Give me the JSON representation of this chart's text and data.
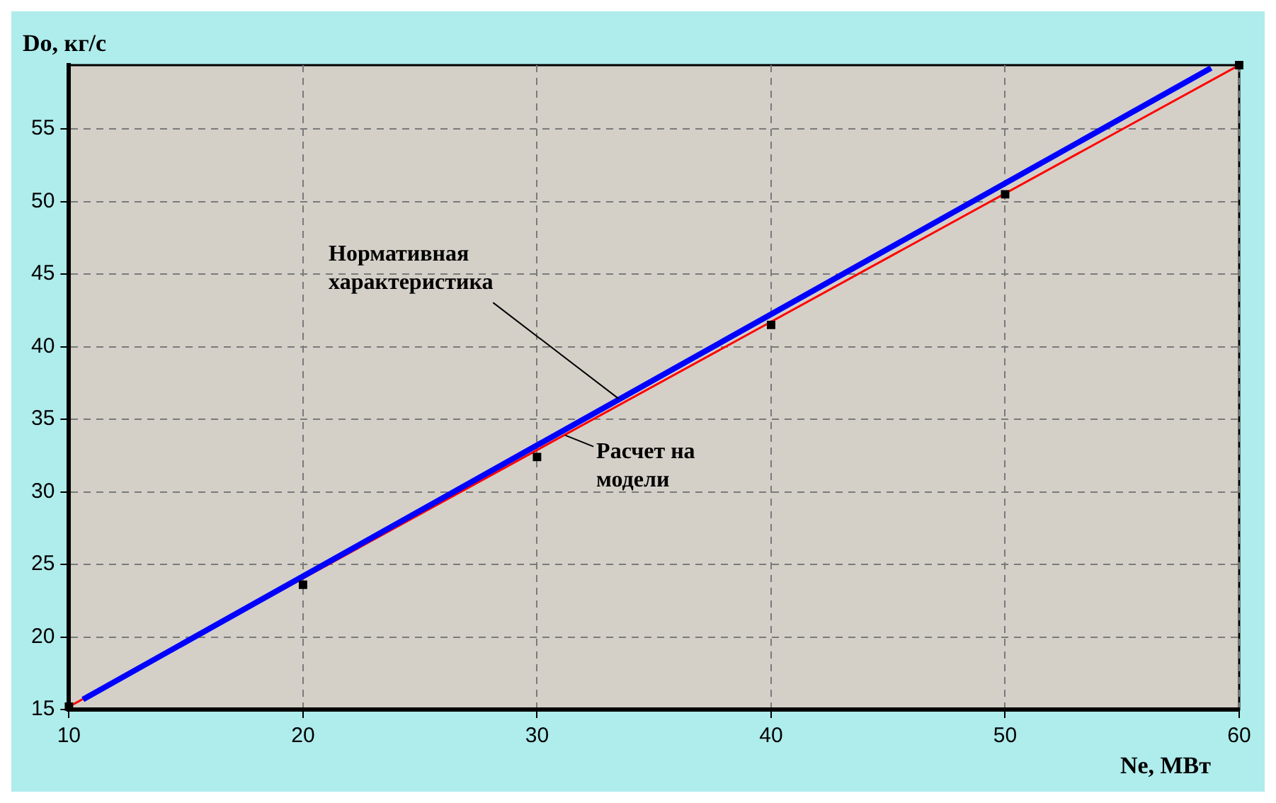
{
  "chart_data": {
    "type": "line",
    "xlabel": "Ne, МВт",
    "ylabel": "Do, кг/с",
    "xlim": [
      10,
      60
    ],
    "xticks": [
      10,
      20,
      30,
      40,
      50,
      60
    ],
    "ylim": [
      15,
      59.4
    ],
    "yticks": [
      15,
      20,
      25,
      30,
      35,
      40,
      45,
      50,
      55
    ],
    "grid": true,
    "series": [
      {
        "color": "#0000ff",
        "x": [
          10.6,
          58.8
        ],
        "values": [
          15.7,
          59.2
        ]
      },
      {
        "color": "#ff0000",
        "x": [
          10,
          60
        ],
        "values": [
          15.2,
          59.4
        ]
      },
      {
        "type": "scatter",
        "color": "#000000",
        "marker": "square",
        "x": [
          10,
          20,
          30,
          40,
          50,
          60
        ],
        "values": [
          15.2,
          23.6,
          32.4,
          41.5,
          50.5,
          59.4
        ]
      }
    ],
    "annotations": [
      {
        "text": "Нормативная характеристика",
        "x": 33.5,
        "y": 36.4
      },
      {
        "text": "Расчет на модели",
        "x": 31.2,
        "y": 33.9
      }
    ]
  }
}
